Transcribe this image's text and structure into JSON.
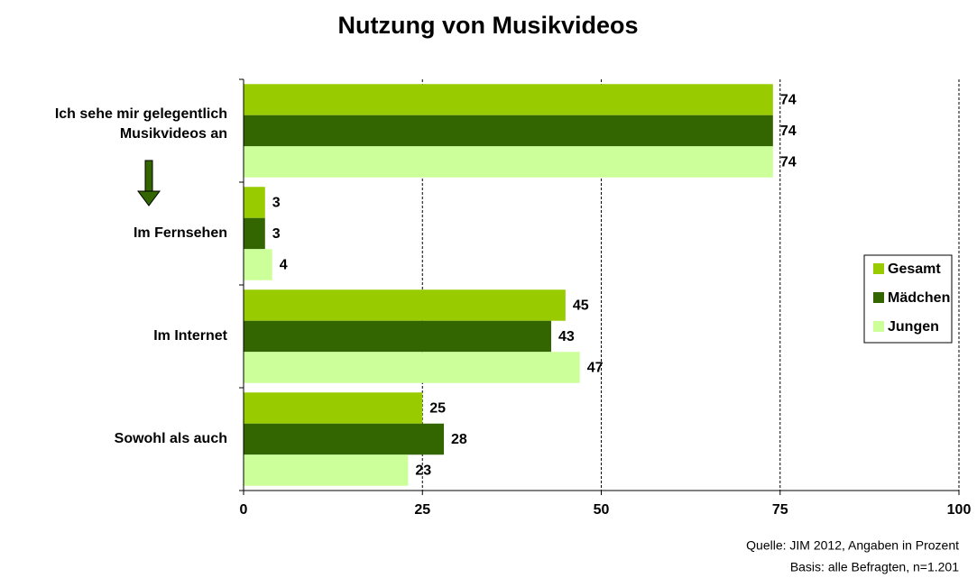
{
  "chart_data": {
    "type": "bar",
    "orientation": "horizontal",
    "title": "Nutzung von Musikvideos",
    "categories": [
      "Ich sehe mir gelegentlich Musikvideos an",
      "Im Fernsehen",
      "Im Internet",
      "Sowohl als auch"
    ],
    "series": [
      {
        "name": "Gesamt",
        "color": "#99cc00",
        "values": [
          74,
          3,
          45,
          25
        ]
      },
      {
        "name": "Mädchen",
        "color": "#336600",
        "values": [
          74,
          3,
          43,
          28
        ]
      },
      {
        "name": "Jungen",
        "color": "#ccff99",
        "values": [
          74,
          4,
          47,
          23
        ]
      }
    ],
    "xlim": [
      0,
      100
    ],
    "xticks": [
      0,
      25,
      50,
      75,
      100
    ],
    "grid": true,
    "legend": "right",
    "notes": [
      "Quelle: JIM 2012, Angaben in Prozent",
      "Basis: alle Befragten, n=1.201"
    ]
  }
}
